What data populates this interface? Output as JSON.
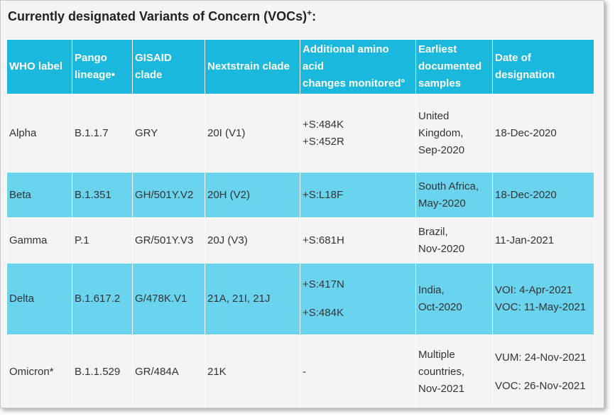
{
  "title": "Currently designated Variants of Concern (VOCs)",
  "title_sup": "+",
  "title_suffix": ":",
  "headers": [
    [
      "WHO label"
    ],
    [
      "Pango",
      "lineage•"
    ],
    [
      "GISAID",
      "clade"
    ],
    [
      "Nextstrain clade"
    ],
    [
      "Additional amino",
      "acid",
      "changes monitored°"
    ],
    [
      "Earliest",
      "documented",
      "samples"
    ],
    [
      "Date of",
      "designation"
    ]
  ],
  "rows": [
    {
      "who": "Alpha",
      "pango": "B.1.1.7",
      "gisaid": "GRY",
      "nextstrain": "20I (V1)",
      "aa": [
        "+S:484K",
        "+S:452R"
      ],
      "samples": [
        "United",
        "Kingdom,",
        "Sep-2020"
      ],
      "date": [
        "18-Dec-2020"
      ]
    },
    {
      "who": "Beta",
      "pango": "B.1.351",
      "gisaid": "GH/501Y.V2",
      "nextstrain": "20H (V2)",
      "aa": [
        "+S:L18F"
      ],
      "samples": [
        "South Africa,",
        "May-2020"
      ],
      "date": [
        "18-Dec-2020"
      ]
    },
    {
      "who": "Gamma",
      "pango": "P.1",
      "gisaid": "GR/501Y.V3",
      "nextstrain": "20J (V3)",
      "aa": [
        "+S:681H"
      ],
      "samples": [
        "Brazil,",
        "Nov-2020"
      ],
      "date": [
        "11-Jan-2021"
      ]
    },
    {
      "who": "Delta",
      "pango": "B.1.617.2",
      "gisaid": "G/478K.V1",
      "nextstrain": "21A, 21I, 21J",
      "aa": [
        "+S:417N",
        "+S:484K"
      ],
      "samples": [
        "India,",
        "Oct-2020"
      ],
      "date": [
        "VOI: 4-Apr-2021",
        "VOC: 11-May-2021"
      ]
    },
    {
      "who": "Omicron*",
      "pango": "B.1.1.529",
      "gisaid": "GR/484A",
      "nextstrain": "21K",
      "aa": [
        "-"
      ],
      "samples": [
        "Multiple",
        "countries,",
        "Nov-2021"
      ],
      "date": [
        "VUM: 24-Nov-2021",
        "VOC: 26-Nov-2021"
      ]
    }
  ],
  "colors": {
    "header": "#1ab8dc",
    "row_cyan": "#6ad4ee",
    "row_grey": "#f4f4f4"
  }
}
